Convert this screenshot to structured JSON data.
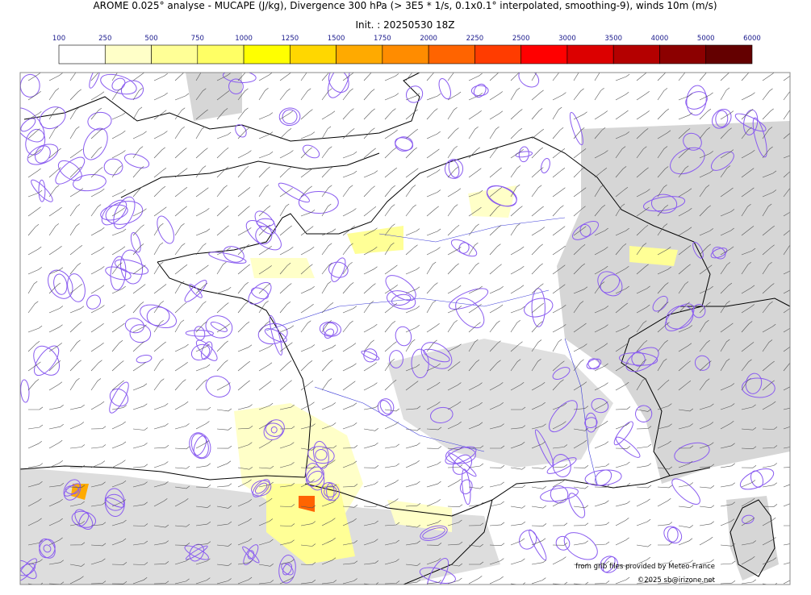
{
  "title": "AROME 0.025° analyse - MUCAPE (J/kg), Divergence 300 hPa (> 3E5 * 1/s, 0.1x0.1° interpolated, smoothing-9), winds 10m (m/s)",
  "subtitle": "Init. : 20250530 18Z",
  "colorbar": {
    "labels": [
      100,
      250,
      500,
      750,
      1000,
      1250,
      1500,
      1750,
      2000,
      2250,
      2500,
      3000,
      3500,
      4000,
      5000,
      6000
    ],
    "colors": [
      "#ffffff",
      "#ffffc8",
      "#ffff96",
      "#ffff64",
      "#ffff00",
      "#ffd700",
      "#ffaa00",
      "#ff8c00",
      "#ff6400",
      "#ff3c00",
      "#ff0000",
      "#dc0000",
      "#b40000",
      "#8c0000",
      "#640000"
    ]
  },
  "credits": [
    "from grib files provided by Meteo-France",
    "©2025 sb@irizone.net"
  ]
}
